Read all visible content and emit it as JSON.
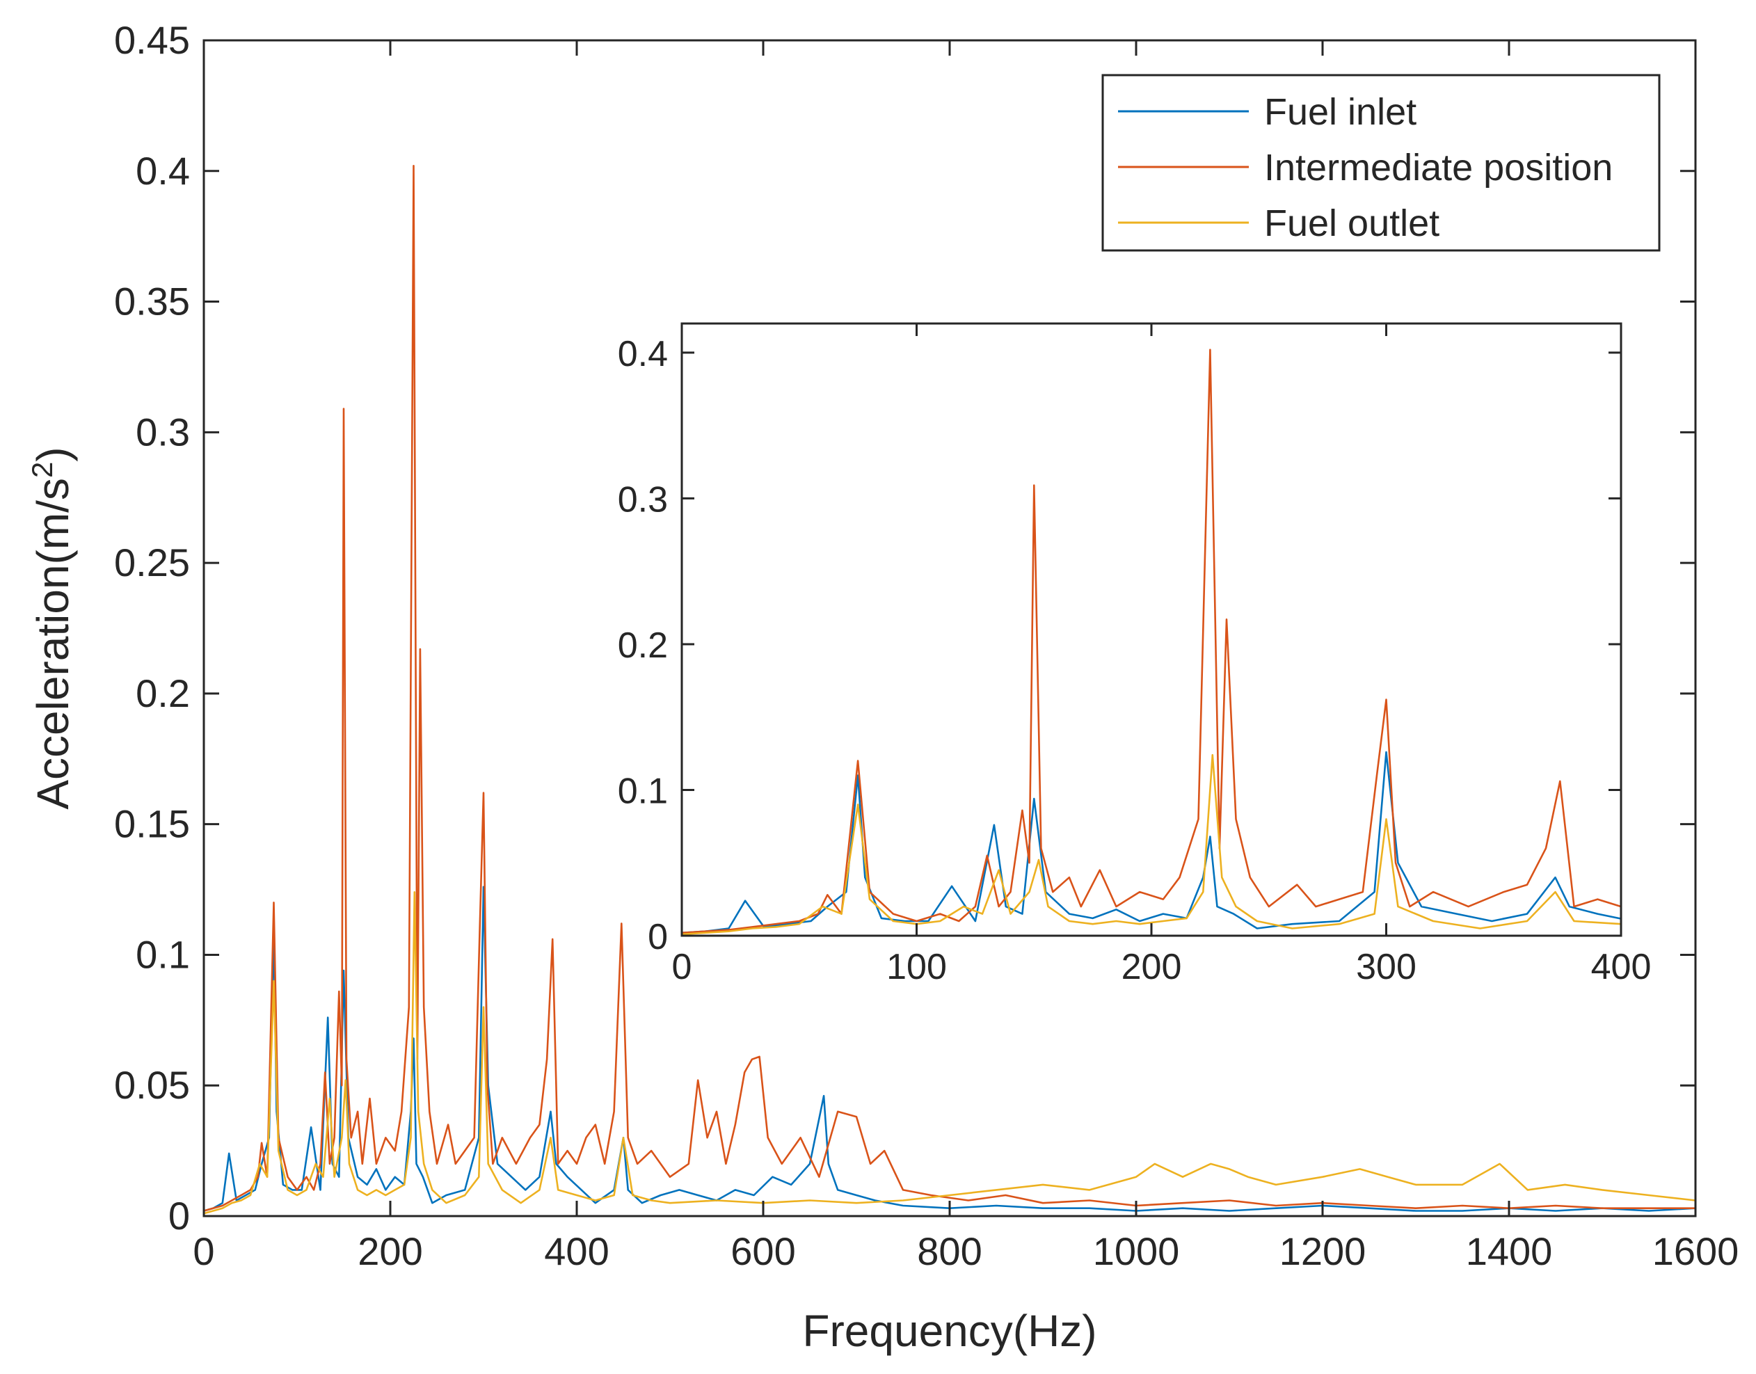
{
  "chart_data": [
    {
      "type": "line",
      "role": "main",
      "title": "",
      "xlabel": "Frequency(Hz)",
      "ylabel_main": "Acceleration(m/s",
      "ylabel_sup": "2",
      "ylabel_close": ")",
      "xlim": [
        0,
        1600
      ],
      "ylim": [
        0,
        0.45
      ],
      "xticks": [
        0,
        200,
        400,
        600,
        800,
        1000,
        1200,
        1400,
        1600
      ],
      "xtick_labels": [
        "0",
        "200",
        "400",
        "600",
        "800",
        "1000",
        "1200",
        "1400",
        "1600"
      ],
      "yticks": [
        0,
        0.05,
        0.1,
        0.15,
        0.2,
        0.25,
        0.3,
        0.35,
        0.4,
        0.45
      ],
      "ytick_labels": [
        "0",
        "0.05",
        "0.1",
        "0.15",
        "0.2",
        "0.25",
        "0.3",
        "0.35",
        "0.4",
        "0.45"
      ],
      "legend_position": "top-right",
      "series": [
        {
          "name": "Fuel inlet",
          "color": "#0072BD",
          "x": [
            0,
            10,
            20,
            27,
            35,
            45,
            55,
            62,
            70,
            75,
            78,
            85,
            95,
            105,
            115,
            125,
            133,
            138,
            145,
            150,
            155,
            165,
            175,
            185,
            195,
            205,
            215,
            222,
            225,
            228,
            235,
            245,
            260,
            280,
            295,
            300,
            305,
            315,
            330,
            345,
            360,
            372,
            378,
            390,
            405,
            420,
            440,
            450,
            455,
            470,
            490,
            510,
            530,
            550,
            570,
            590,
            610,
            630,
            650,
            665,
            670,
            680,
            700,
            720,
            750,
            800,
            850,
            900,
            950,
            1000,
            1050,
            1100,
            1150,
            1200,
            1250,
            1300,
            1350,
            1400,
            1450,
            1500,
            1550,
            1600
          ],
          "values": [
            0.002,
            0.003,
            0.005,
            0.024,
            0.006,
            0.008,
            0.01,
            0.02,
            0.03,
            0.11,
            0.04,
            0.012,
            0.01,
            0.01,
            0.034,
            0.01,
            0.076,
            0.02,
            0.015,
            0.094,
            0.03,
            0.015,
            0.012,
            0.018,
            0.01,
            0.015,
            0.012,
            0.04,
            0.068,
            0.02,
            0.015,
            0.005,
            0.008,
            0.01,
            0.03,
            0.126,
            0.05,
            0.02,
            0.015,
            0.01,
            0.015,
            0.04,
            0.02,
            0.015,
            0.01,
            0.005,
            0.01,
            0.03,
            0.01,
            0.005,
            0.008,
            0.01,
            0.008,
            0.006,
            0.01,
            0.008,
            0.015,
            0.012,
            0.02,
            0.046,
            0.02,
            0.01,
            0.008,
            0.006,
            0.004,
            0.003,
            0.004,
            0.003,
            0.003,
            0.002,
            0.003,
            0.002,
            0.003,
            0.004,
            0.003,
            0.002,
            0.002,
            0.003,
            0.002,
            0.003,
            0.002,
            0.003
          ]
        },
        {
          "name": "Intermediate position",
          "color": "#D95319",
          "x": [
            0,
            10,
            20,
            30,
            40,
            50,
            58,
            62,
            68,
            75,
            80,
            90,
            100,
            110,
            118,
            125,
            130,
            135,
            140,
            145,
            148,
            150,
            153,
            158,
            165,
            170,
            178,
            185,
            195,
            205,
            212,
            220,
            225,
            229,
            232,
            236,
            242,
            250,
            262,
            270,
            280,
            290,
            296,
            300,
            304,
            310,
            320,
            335,
            350,
            360,
            368,
            374,
            380,
            390,
            400,
            410,
            420,
            430,
            440,
            448,
            455,
            465,
            480,
            500,
            520,
            530,
            540,
            550,
            560,
            570,
            580,
            588,
            596,
            605,
            620,
            640,
            660,
            680,
            700,
            715,
            730,
            750,
            780,
            820,
            860,
            900,
            950,
            1000,
            1050,
            1100,
            1150,
            1200,
            1250,
            1300,
            1350,
            1400,
            1450,
            1500,
            1550,
            1600
          ],
          "values": [
            0.002,
            0.003,
            0.004,
            0.006,
            0.008,
            0.01,
            0.015,
            0.028,
            0.015,
            0.12,
            0.03,
            0.015,
            0.01,
            0.015,
            0.01,
            0.02,
            0.055,
            0.02,
            0.03,
            0.086,
            0.05,
            0.309,
            0.06,
            0.03,
            0.04,
            0.02,
            0.045,
            0.02,
            0.03,
            0.025,
            0.04,
            0.08,
            0.402,
            0.06,
            0.217,
            0.08,
            0.04,
            0.02,
            0.035,
            0.02,
            0.025,
            0.03,
            0.11,
            0.162,
            0.05,
            0.02,
            0.03,
            0.02,
            0.03,
            0.035,
            0.06,
            0.106,
            0.02,
            0.025,
            0.02,
            0.03,
            0.035,
            0.02,
            0.04,
            0.112,
            0.03,
            0.02,
            0.025,
            0.015,
            0.02,
            0.052,
            0.03,
            0.04,
            0.02,
            0.035,
            0.055,
            0.06,
            0.061,
            0.03,
            0.02,
            0.03,
            0.015,
            0.04,
            0.038,
            0.02,
            0.025,
            0.01,
            0.008,
            0.006,
            0.008,
            0.005,
            0.006,
            0.004,
            0.005,
            0.006,
            0.004,
            0.005,
            0.004,
            0.003,
            0.004,
            0.003,
            0.004,
            0.003,
            0.003,
            0.003
          ]
        },
        {
          "name": "Fuel outlet",
          "color": "#EDB120",
          "x": [
            0,
            10,
            20,
            30,
            40,
            50,
            60,
            68,
            75,
            80,
            90,
            100,
            110,
            120,
            128,
            135,
            140,
            148,
            152,
            156,
            165,
            175,
            185,
            195,
            205,
            215,
            222,
            226,
            230,
            236,
            245,
            260,
            280,
            295,
            300,
            305,
            320,
            340,
            360,
            372,
            380,
            400,
            420,
            440,
            450,
            460,
            480,
            500,
            550,
            600,
            650,
            700,
            750,
            800,
            850,
            900,
            950,
            1000,
            1020,
            1050,
            1080,
            1100,
            1120,
            1150,
            1200,
            1240,
            1270,
            1300,
            1350,
            1390,
            1420,
            1460,
            1500,
            1550,
            1600
          ],
          "values": [
            0.001,
            0.002,
            0.003,
            0.005,
            0.006,
            0.008,
            0.02,
            0.015,
            0.09,
            0.025,
            0.01,
            0.008,
            0.01,
            0.02,
            0.015,
            0.045,
            0.015,
            0.03,
            0.052,
            0.02,
            0.01,
            0.008,
            0.01,
            0.008,
            0.01,
            0.012,
            0.03,
            0.124,
            0.04,
            0.02,
            0.01,
            0.005,
            0.008,
            0.015,
            0.08,
            0.02,
            0.01,
            0.005,
            0.01,
            0.03,
            0.01,
            0.008,
            0.006,
            0.008,
            0.03,
            0.008,
            0.006,
            0.005,
            0.006,
            0.005,
            0.006,
            0.005,
            0.006,
            0.008,
            0.01,
            0.012,
            0.01,
            0.015,
            0.02,
            0.015,
            0.02,
            0.018,
            0.015,
            0.012,
            0.015,
            0.018,
            0.015,
            0.012,
            0.012,
            0.02,
            0.01,
            0.012,
            0.01,
            0.008,
            0.006
          ]
        }
      ]
    },
    {
      "type": "line",
      "role": "inset",
      "title": "",
      "xlabel": "",
      "ylabel": "",
      "xlim": [
        0,
        400
      ],
      "ylim": [
        0,
        0.42
      ],
      "xticks": [
        0,
        100,
        200,
        300,
        400
      ],
      "xtick_labels": [
        "0",
        "100",
        "200",
        "300",
        "400"
      ],
      "yticks": [
        0,
        0.1,
        0.2,
        0.3,
        0.4
      ],
      "ytick_labels": [
        "0",
        "0.1",
        "0.2",
        "0.3",
        "0.4"
      ],
      "note": "zoomed view of 0-400 Hz using the same three series"
    }
  ]
}
